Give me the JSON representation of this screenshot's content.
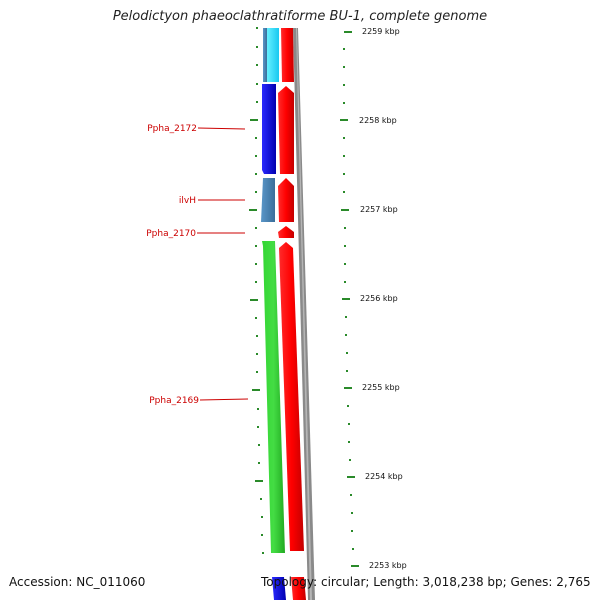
{
  "title": "Pelodictyon phaeoclathratiforme BU-1, complete genome",
  "accession": "Accession: NC_011060",
  "summary": "Topology: circular; Length: 3,018,238 bp; Genes: 2,765",
  "gene_labels": [
    {
      "id": "Ppha_2172",
      "text": "Ppha_2172"
    },
    {
      "id": "ilvH",
      "text": "ilvH"
    },
    {
      "id": "Ppha_2170",
      "text": "Ppha_2170"
    },
    {
      "id": "Ppha_2169",
      "text": "Ppha_2169"
    }
  ],
  "scale_labels": [
    "2259 kbp",
    "2258 kbp",
    "2257 kbp",
    "2256 kbp",
    "2255 kbp",
    "2254 kbp",
    "2253 kbp"
  ],
  "colors": {
    "cds_forward": "#ff0000",
    "cds_reverse_blue": "#1010e0",
    "cds_reverse_cyan": "#33e0ff",
    "cds_reverse_steel": "#4a86b8",
    "cds_reverse_green": "#33cc33",
    "backbone": "#888888",
    "ticks": "#2a8a2a",
    "label_text": "#cc0000"
  }
}
